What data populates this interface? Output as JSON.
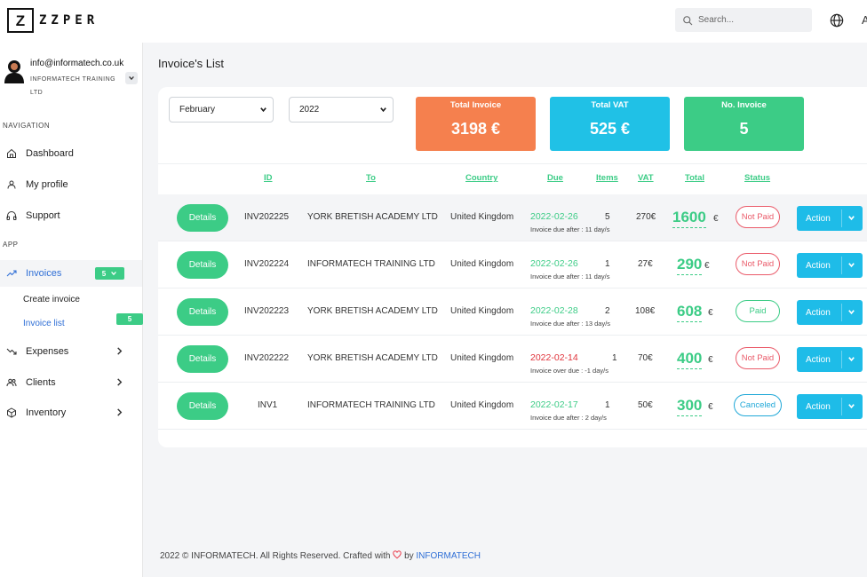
{
  "brand": {
    "logo_mark": "Z",
    "logo_text": "ZZPER"
  },
  "header": {
    "search_placeholder": "Search...",
    "language_icon": "globe-icon",
    "user_initial": "A"
  },
  "sidebar": {
    "user": {
      "email": "info@informatech.co.uk",
      "company": "INFORMATECH TRAINING LTD"
    },
    "navigation_label": "NAVIGATION",
    "nav": [
      {
        "label": "Dashboard",
        "icon": "home-icon"
      },
      {
        "label": "My profile",
        "icon": "user-icon"
      },
      {
        "label": "Support",
        "icon": "headphones-icon"
      }
    ],
    "app_label": "APP",
    "invoices": {
      "label": "Invoices",
      "badge": "5",
      "icon": "trending-up-icon"
    },
    "invoice_sub": [
      {
        "label": "Create invoice"
      },
      {
        "label": "Invoice list",
        "badge": "5"
      }
    ],
    "app": [
      {
        "label": "Expenses",
        "icon": "trending-down-icon"
      },
      {
        "label": "Clients",
        "icon": "users-icon"
      },
      {
        "label": "Inventory",
        "icon": "box-icon"
      }
    ]
  },
  "page": {
    "title": "Invoice's List"
  },
  "filters": {
    "month": "February",
    "year": "2022"
  },
  "stats": [
    {
      "label": "Total Invoice",
      "value": "3198 €",
      "color": "#f5804e"
    },
    {
      "label": "Total VAT",
      "value": "525 €",
      "color": "#20c1e6"
    },
    {
      "label": "No. Invoice",
      "value": "5",
      "color": "#3ccc86"
    }
  ],
  "table": {
    "headers": [
      "ID",
      "To",
      "Country",
      "Due",
      "Items",
      "VAT",
      "Total",
      "Status"
    ],
    "rows": [
      {
        "details": "Details",
        "id": "INV202225",
        "to": "YORK BRETISH ACADEMY LTD",
        "country": "United Kingdom",
        "due": "2022-02-26",
        "due_note": "Invoice due after : 11 day/s",
        "items": "5",
        "vat": "270€",
        "total": "1600",
        "currency": "€",
        "status": "Not Paid",
        "action": "Action"
      },
      {
        "details": "Details",
        "id": "INV202224",
        "to": "INFORMATECH TRAINING LTD",
        "country": "United Kingdom",
        "due": "2022-02-26",
        "due_note": "Invoice due after : 11 day/s",
        "items": "1",
        "vat": "27€",
        "total": "290",
        "currency": "€",
        "status": "Not Paid",
        "action": "Action"
      },
      {
        "details": "Details",
        "id": "INV202223",
        "to": "YORK BRETISH ACADEMY LTD",
        "country": "United Kingdom",
        "due": "2022-02-28",
        "due_note": "Invoice due after : 13 day/s",
        "items": "2",
        "vat": "108€",
        "total": "608",
        "currency": "€",
        "status": "Paid",
        "action": "Action"
      },
      {
        "details": "Details",
        "id": "INV202222",
        "to": "YORK BRETISH ACADEMY LTD",
        "country": "United Kingdom",
        "due": "2022-02-14",
        "due_note": "Invoice over due : -1 day/s",
        "items": "1",
        "vat": "70€",
        "total": "400",
        "currency": "€",
        "status": "Not Paid",
        "action": "Action"
      },
      {
        "details": "Details",
        "id": "INV1",
        "to": "INFORMATECH TRAINING LTD",
        "country": "United Kingdom",
        "due": "2022-02-17",
        "due_note": "Invoice due after : 2 day/s",
        "items": "1",
        "vat": "50€",
        "total": "300",
        "currency": "€",
        "status": "Canceled",
        "action": "Action"
      }
    ]
  },
  "colors": {
    "green": "#3ccc86",
    "blue": "#1ebce8",
    "red": "#e0323a",
    "not_paid": "#ea5b6a",
    "paid": "#3ccc86",
    "canceled": "#20a8d8",
    "link": "#2f6fd6"
  },
  "footer": {
    "text": "2022 © INFORMATECH. All Rights Reserved. Crafted with",
    "by": "by",
    "brand": "INFORMATECH"
  }
}
